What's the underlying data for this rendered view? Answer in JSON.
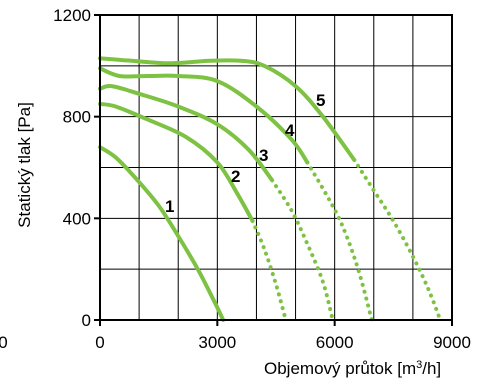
{
  "chart_data": {
    "type": "line",
    "xlabel": "Objemový průtok [m³/h]",
    "ylabel": "Statický tlak [Pa]",
    "xlim": [
      0,
      9000
    ],
    "ylim": [
      0,
      1200
    ],
    "x_ticks": [
      "0",
      "3000",
      "6000",
      "9000"
    ],
    "y_ticks": [
      "0",
      "400",
      "800",
      "1200"
    ],
    "stray_tick": "0",
    "grid": true,
    "line_color": "#7dc242",
    "series": [
      {
        "name": "1",
        "solid": [
          [
            0,
            680
          ],
          [
            400,
            640
          ],
          [
            900,
            560
          ],
          [
            1500,
            450
          ],
          [
            2000,
            330
          ],
          [
            2500,
            200
          ],
          [
            2900,
            80
          ],
          [
            3150,
            0
          ]
        ],
        "dotted": []
      },
      {
        "name": "2",
        "solid": [
          [
            0,
            850
          ],
          [
            400,
            840
          ],
          [
            1200,
            790
          ],
          [
            2200,
            720
          ],
          [
            3000,
            620
          ],
          [
            3500,
            500
          ],
          [
            3900,
            390
          ]
        ],
        "dotted": [
          [
            3900,
            390
          ],
          [
            4200,
            280
          ],
          [
            4500,
            140
          ],
          [
            4750,
            0
          ]
        ]
      },
      {
        "name": "3",
        "solid": [
          [
            0,
            910
          ],
          [
            300,
            920
          ],
          [
            1000,
            890
          ],
          [
            2000,
            840
          ],
          [
            3000,
            770
          ],
          [
            3800,
            670
          ],
          [
            4400,
            550
          ]
        ],
        "dotted": [
          [
            4400,
            550
          ],
          [
            4900,
            430
          ],
          [
            5300,
            300
          ],
          [
            5700,
            150
          ],
          [
            5950,
            0
          ]
        ]
      },
      {
        "name": "4",
        "solid": [
          [
            0,
            990
          ],
          [
            500,
            960
          ],
          [
            1200,
            960
          ],
          [
            2000,
            960
          ],
          [
            3000,
            940
          ],
          [
            4000,
            840
          ],
          [
            4900,
            710
          ],
          [
            5300,
            620
          ]
        ],
        "dotted": [
          [
            5300,
            620
          ],
          [
            5800,
            490
          ],
          [
            6200,
            370
          ],
          [
            6600,
            200
          ],
          [
            6950,
            0
          ]
        ]
      },
      {
        "name": "5",
        "solid": [
          [
            0,
            1030
          ],
          [
            800,
            1020
          ],
          [
            1800,
            1010
          ],
          [
            2800,
            1020
          ],
          [
            3600,
            1020
          ],
          [
            4200,
            1000
          ],
          [
            5000,
            920
          ],
          [
            5700,
            800
          ],
          [
            6500,
            630
          ]
        ],
        "dotted": [
          [
            6500,
            630
          ],
          [
            7000,
            510
          ],
          [
            7500,
            390
          ],
          [
            8000,
            250
          ],
          [
            8400,
            120
          ],
          [
            8700,
            0
          ]
        ]
      }
    ]
  }
}
